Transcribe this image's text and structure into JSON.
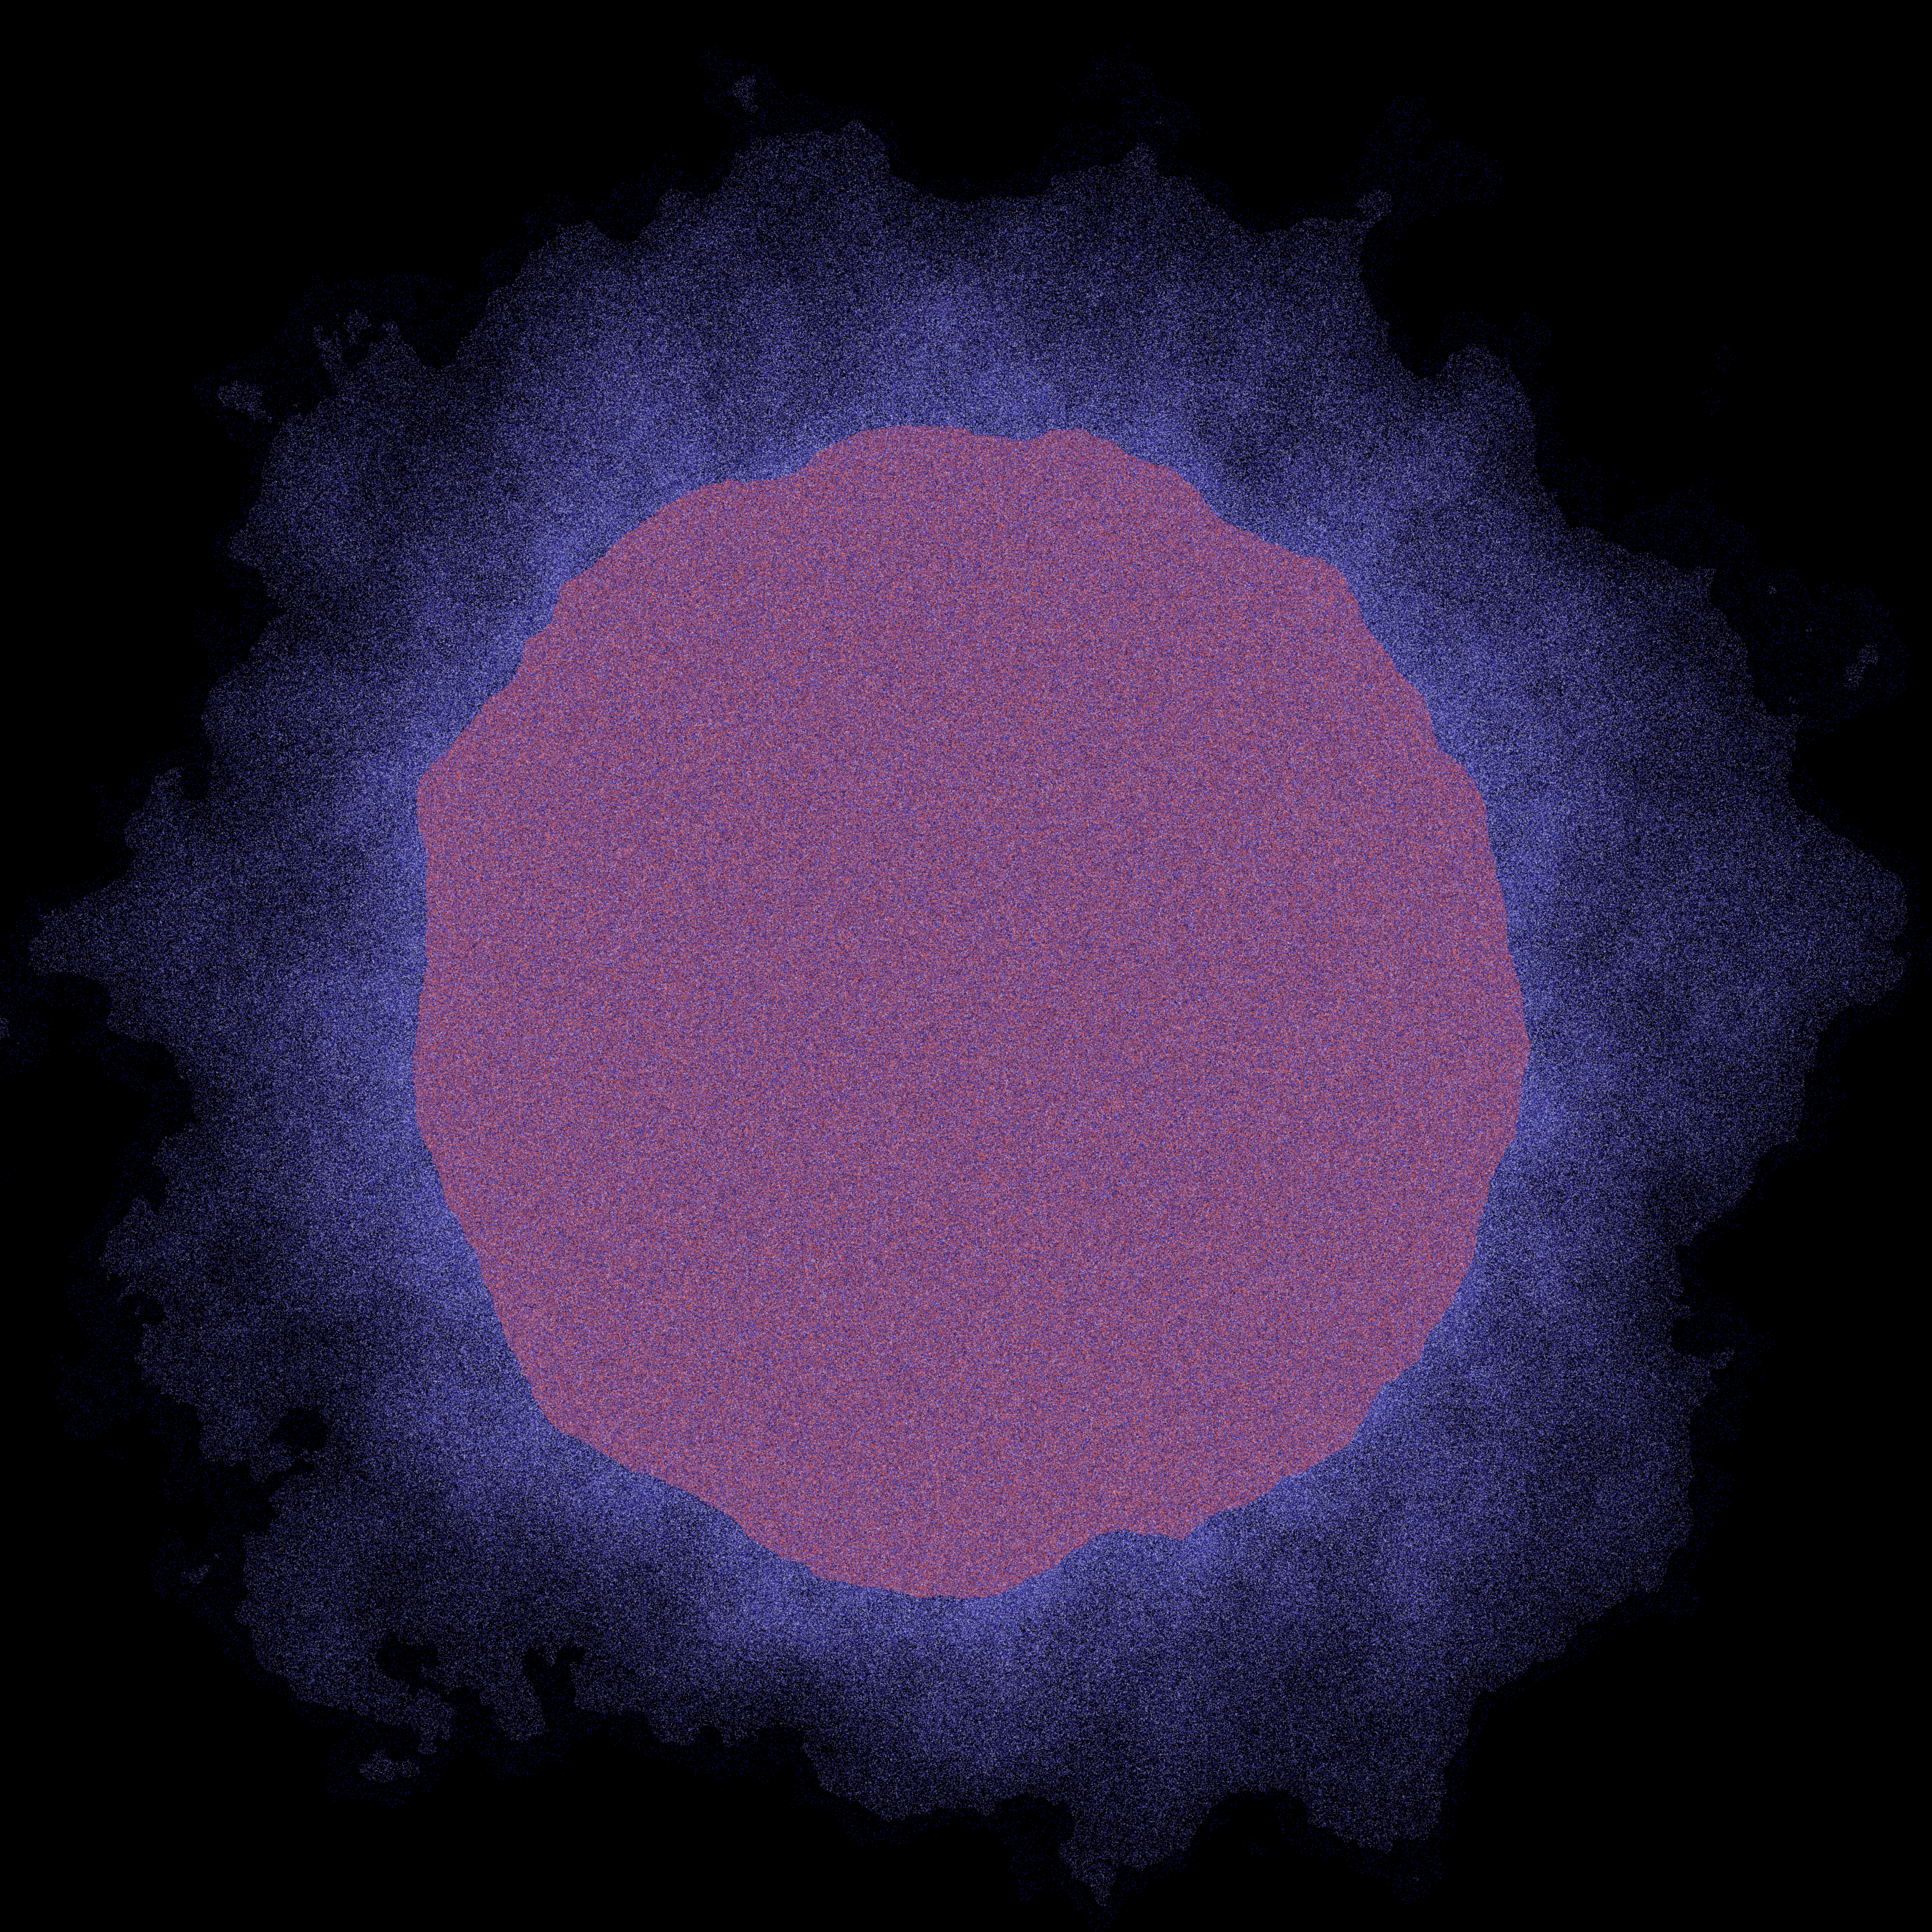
{
  "scene": {
    "subject": "fractal-particle-cloud",
    "colors": {
      "background": "#000000",
      "core": "#a0506e",
      "core_speckle": "#e06a6a",
      "halo": "#4a44c8",
      "halo_speckle": "#b8b8ff",
      "edge": "#14106a"
    }
  }
}
